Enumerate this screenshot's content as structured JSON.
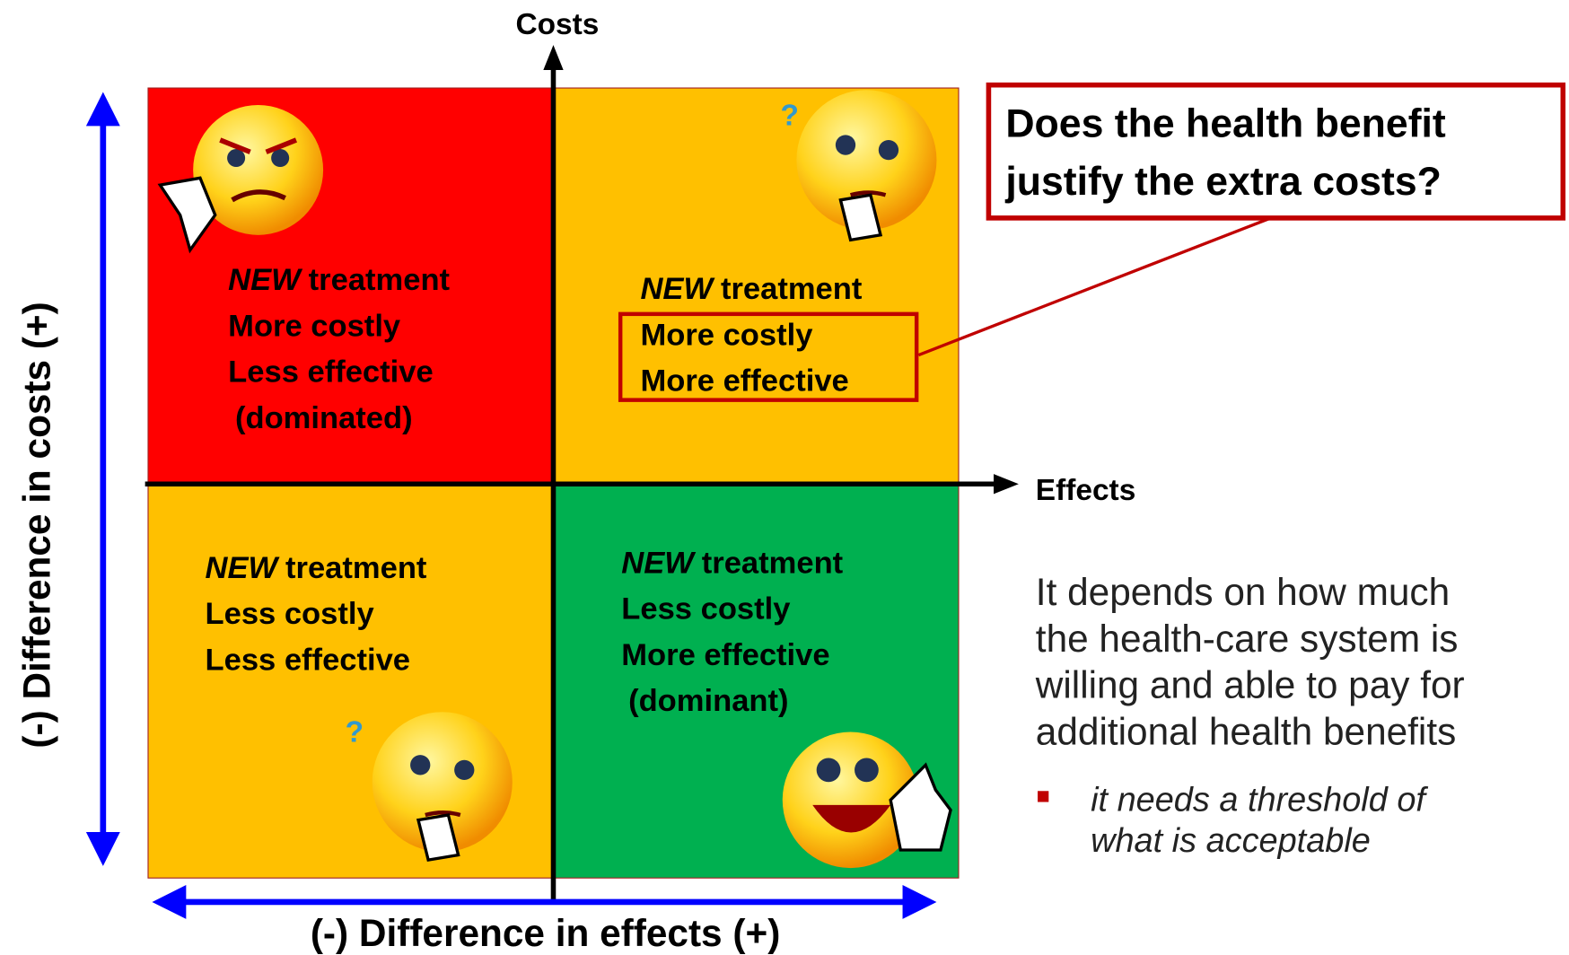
{
  "axes": {
    "y_label": "Costs",
    "x_label": "Effects",
    "y_range_label": "(-) Difference in costs (+)",
    "x_range_label": "(-) Difference in effects (+)"
  },
  "quadrants": [
    {
      "emphasis": "NEW",
      "title": "treatment",
      "lines": [
        "More costly",
        "Less effective",
        "(dominated)"
      ]
    },
    {
      "emphasis": "NEW",
      "title": "treatment",
      "lines": [
        "More costly",
        "More effective"
      ]
    },
    {
      "emphasis": "NEW",
      "title": "treatment",
      "lines": [
        "Less costly",
        "Less effective"
      ]
    },
    {
      "emphasis": "NEW",
      "title": "treatment",
      "lines": [
        "Less costly",
        "More effective",
        "(dominant)"
      ]
    }
  ],
  "callout": {
    "lines": [
      "Does the health benefit",
      "justify the extra costs?"
    ]
  },
  "explanation": {
    "lines": [
      "It depends on how much",
      "the health-care system is",
      "willing and able to pay for",
      "additional health benefits"
    ],
    "bullet": [
      "it needs a threshold of",
      "what is acceptable"
    ]
  }
}
